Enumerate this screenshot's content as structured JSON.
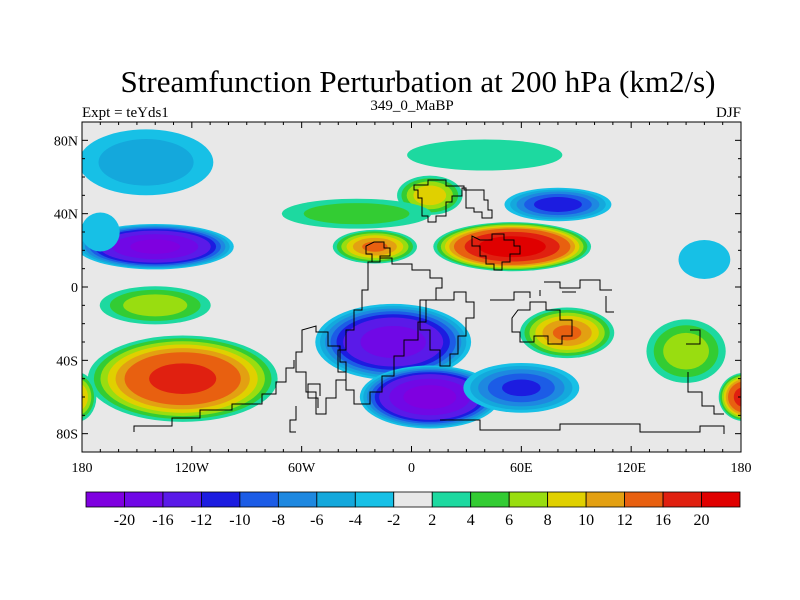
{
  "chart_data": {
    "type": "heatmap",
    "title": "Streamfunction Perturbation at 200 hPa (km2/s)",
    "subtitle_left": "Expt = teYds1",
    "subtitle_center": "349_0_MaBP",
    "subtitle_right": "DJF",
    "x_ticks": [
      {
        "value": -180,
        "label": "180"
      },
      {
        "value": -120,
        "label": "120W"
      },
      {
        "value": -60,
        "label": "60W"
      },
      {
        "value": 0,
        "label": "0"
      },
      {
        "value": 60,
        "label": "60E"
      },
      {
        "value": 120,
        "label": "120E"
      },
      {
        "value": 180,
        "label": "180"
      }
    ],
    "y_ticks": [
      {
        "value": 80,
        "label": "80N"
      },
      {
        "value": 40,
        "label": "40N"
      },
      {
        "value": 0,
        "label": "0"
      },
      {
        "value": -40,
        "label": "40S"
      },
      {
        "value": -80,
        "label": "80S"
      }
    ],
    "xlim": [
      -180,
      180
    ],
    "ylim": [
      -90,
      90
    ],
    "colorbar": {
      "levels": [
        "-20",
        "-16",
        "-12",
        "-10",
        "-8",
        "-6",
        "-4",
        "-2",
        "2",
        "4",
        "6",
        "8",
        "10",
        "12",
        "16",
        "20"
      ],
      "colors": [
        "#7f00e0",
        "#7008e6",
        "#5a1ae8",
        "#1c1ce0",
        "#1c5ce6",
        "#1e88e0",
        "#14a8dc",
        "#17c0e6",
        "#e8e8e8",
        "#1dd9a0",
        "#33cc33",
        "#99dd10",
        "#e0d000",
        "#e3a012",
        "#e86010",
        "#e02010",
        "#e00000"
      ]
    },
    "anomalies": [
      {
        "name": "ne-pacific-low-tropics",
        "lon": -140,
        "lat": 22,
        "rlon": 45,
        "rlat": 13,
        "value": -21
      },
      {
        "name": "n-pacific-weak-low",
        "lon": -145,
        "lat": 68,
        "rlon": 45,
        "rlat": 22,
        "value": -5
      },
      {
        "name": "arctic-high-weak",
        "lon": 40,
        "lat": 72,
        "rlon": 60,
        "rlat": 12,
        "value": 3
      },
      {
        "name": "n-asia-low",
        "lon": 80,
        "lat": 45,
        "rlon": 32,
        "rlat": 10,
        "value": -11
      },
      {
        "name": "mid-atlantic-high",
        "lon": 10,
        "lat": 50,
        "rlon": 20,
        "rlat": 12,
        "value": 9
      },
      {
        "name": "n-atlantic-ridge",
        "lon": -30,
        "lat": 40,
        "rlon": 50,
        "rlat": 10,
        "value": 5
      },
      {
        "name": "n-africa-asia-high",
        "lon": 55,
        "lat": 22,
        "rlon": 45,
        "rlat": 14,
        "value": 23
      },
      {
        "name": "central-atlantic-high",
        "lon": -20,
        "lat": 22,
        "rlon": 25,
        "rlat": 10,
        "value": 12
      },
      {
        "name": "s-atlantic-africa-low",
        "lon": -10,
        "lat": -30,
        "rlon": 45,
        "rlat": 22,
        "value": -18
      },
      {
        "name": "s-ocean-low",
        "lon": 10,
        "lat": -60,
        "rlon": 40,
        "rlat": 18,
        "value": -22
      },
      {
        "name": "s-indian-low",
        "lon": 60,
        "lat": -55,
        "rlon": 35,
        "rlat": 15,
        "value": -10
      },
      {
        "name": "s-pacific-high",
        "lon": -125,
        "lat": -50,
        "rlon": 55,
        "rlat": 25,
        "value": 17
      },
      {
        "name": "s-pacific-high-weak",
        "lon": -140,
        "lat": -10,
        "rlon": 35,
        "rlat": 12,
        "value": 7
      },
      {
        "name": "s-indian-ocean-high",
        "lon": 85,
        "lat": -25,
        "rlon": 28,
        "rlat": 15,
        "value": 12
      },
      {
        "name": "s-pacific-east-high",
        "lon": 150,
        "lat": -35,
        "rlon": 25,
        "rlat": 20,
        "value": 7
      },
      {
        "name": "dateline-south-high",
        "lon": 182,
        "lat": -60,
        "rlon": 15,
        "rlat": 14,
        "value": 18
      },
      {
        "name": "dateline-west-high",
        "lon": -183,
        "lat": -60,
        "rlon": 12,
        "rlat": 15,
        "value": 10
      },
      {
        "name": "w-pacific-weak-low",
        "lon": 160,
        "lat": 15,
        "rlon": 20,
        "rlat": 15,
        "value": -3
      },
      {
        "name": "e-pacific-weak-low",
        "lon": -170,
        "lat": 30,
        "rlon": 15,
        "rlat": 15,
        "value": -3
      }
    ]
  }
}
